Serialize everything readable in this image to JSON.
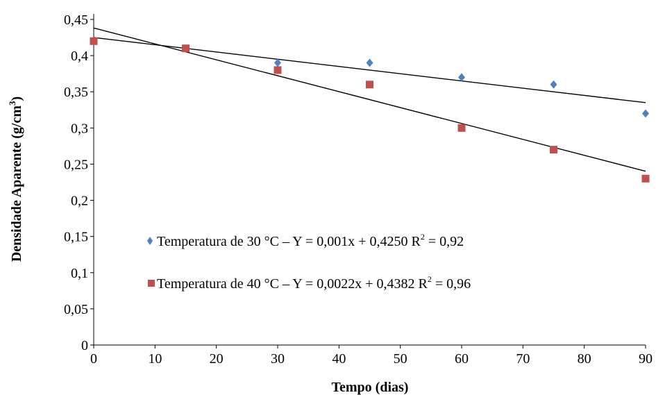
{
  "chart_data": {
    "type": "scatter",
    "xlabel": "Tempo (dias)",
    "ylabel": "Densidade Aparente (g/cm",
    "ylabel_sup": "3",
    "ylabel_end": ")",
    "xlim": [
      0,
      90
    ],
    "ylim": [
      0,
      0.45
    ],
    "x_ticks": [
      "0",
      "10",
      "20",
      "30",
      "40",
      "50",
      "60",
      "70",
      "80",
      "90"
    ],
    "y_ticks": [
      "0",
      "0,05",
      "0,1",
      "0,15",
      "0,2",
      "0,25",
      "0,3",
      "0,35",
      "0,4",
      "0,45"
    ],
    "grid": false,
    "legend_position": "center-left",
    "series": [
      {
        "legend_main": "Temperatura de 30 °C – Y = 0,001x + 0,4250 R",
        "legend_sup": "2",
        "legend_end": " = 0,92",
        "marker": "diamond",
        "color": "#4F81BD",
        "x": [
          0,
          15,
          30,
          45,
          60,
          75,
          90
        ],
        "y": [
          0.42,
          0.41,
          0.39,
          0.39,
          0.37,
          0.36,
          0.32
        ],
        "trend": {
          "slope": -0.001,
          "intercept": 0.425
        }
      },
      {
        "legend_main": "Temperatura de 40 °C – Y = 0,0022x + 0,4382 R",
        "legend_sup": "2",
        "legend_end": " = 0,96",
        "marker": "square",
        "color": "#C0504D",
        "x": [
          0,
          15,
          30,
          45,
          60,
          75,
          90
        ],
        "y": [
          0.42,
          0.41,
          0.38,
          0.36,
          0.3,
          0.27,
          0.23
        ],
        "trend": {
          "slope": -0.0022,
          "intercept": 0.4382
        }
      }
    ]
  }
}
